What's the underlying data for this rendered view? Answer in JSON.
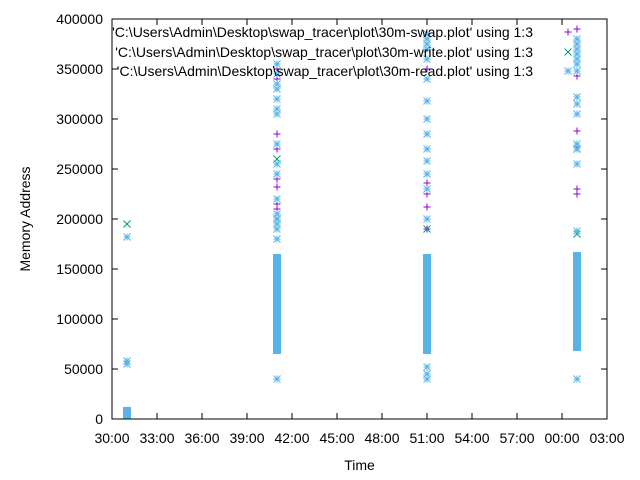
{
  "chart_data": {
    "type": "scatter",
    "xlabel": "Time",
    "ylabel": "Memory Address",
    "xticks": [
      "30:00",
      "33:00",
      "36:00",
      "39:00",
      "42:00",
      "45:00",
      "48:00",
      "51:00",
      "54:00",
      "57:00",
      "00:00",
      "03:00"
    ],
    "xlim": [
      "30:00",
      "03:00"
    ],
    "ylim": [
      0,
      400000
    ],
    "yticks": [
      0,
      50000,
      100000,
      150000,
      200000,
      250000,
      300000,
      350000,
      400000
    ],
    "grid": false,
    "legend_position": "top-right",
    "series": [
      {
        "name": "'C:\\Users\\Admin\\Desktop\\swap_tracer\\plot\\30m-swap.plot' using 1:3",
        "marker": "plus",
        "color": "#9400d3",
        "points": [
          [
            "41:00",
            285000
          ],
          [
            "41:00",
            270000
          ],
          [
            "41:00",
            240000
          ],
          [
            "41:00",
            232000
          ],
          [
            "41:00",
            215000
          ],
          [
            "41:00",
            210000
          ],
          [
            "41:00",
            350000
          ],
          [
            "41:00",
            340000
          ],
          [
            "51:00",
            236000
          ],
          [
            "51:00",
            225000
          ],
          [
            "51:00",
            212000
          ],
          [
            "51:00",
            190000
          ],
          [
            "51:00",
            360000
          ],
          [
            "51:00",
            350000
          ],
          [
            "01:00",
            390000
          ],
          [
            "01:00",
            343000
          ],
          [
            "01:00",
            288000
          ],
          [
            "01:00",
            272000
          ],
          [
            "01:00",
            230000
          ],
          [
            "01:00",
            225000
          ]
        ]
      },
      {
        "name": "'C:\\Users\\Admin\\Desktop\\swap_tracer\\plot\\30m-write.plot' using 1:3",
        "marker": "cross",
        "color": "#009e73",
        "points": [
          [
            "31:00",
            195000
          ],
          [
            "41:00",
            260000
          ],
          [
            "41:00",
            200000
          ],
          [
            "51:00",
            190000
          ],
          [
            "51:00",
            160000
          ],
          [
            "01:00",
            270000
          ],
          [
            "01:00",
            185000
          ]
        ]
      },
      {
        "name": "'C:\\Users\\Admin\\Desktop\\swap_tracer\\plot\\30m-read.plot' using 1:3",
        "marker": "star",
        "color": "#56b4e9",
        "bands": [
          {
            "x": "31:00",
            "y_from": 0,
            "y_to": 12000
          },
          {
            "x": "41:00",
            "y_from": 65000,
            "y_to": 165000
          },
          {
            "x": "51:00",
            "y_from": 65000,
            "y_to": 165000
          },
          {
            "x": "01:00",
            "y_from": 68000,
            "y_to": 167000
          }
        ],
        "points": [
          [
            "31:00",
            182000
          ],
          [
            "31:00",
            58000
          ],
          [
            "31:00",
            55000
          ],
          [
            "41:00",
            40000
          ],
          [
            "41:00",
            180000
          ],
          [
            "41:00",
            190000
          ],
          [
            "41:00",
            195000
          ],
          [
            "41:00",
            200000
          ],
          [
            "41:00",
            205000
          ],
          [
            "41:00",
            220000
          ],
          [
            "41:00",
            245000
          ],
          [
            "41:00",
            255000
          ],
          [
            "41:00",
            275000
          ],
          [
            "41:00",
            305000
          ],
          [
            "41:00",
            310000
          ],
          [
            "41:00",
            320000
          ],
          [
            "41:00",
            330000
          ],
          [
            "41:00",
            335000
          ],
          [
            "41:00",
            345000
          ],
          [
            "41:00",
            355000
          ],
          [
            "51:00",
            40000
          ],
          [
            "51:00",
            45000
          ],
          [
            "51:00",
            52000
          ],
          [
            "51:00",
            200000
          ],
          [
            "51:00",
            230000
          ],
          [
            "51:00",
            245000
          ],
          [
            "51:00",
            258000
          ],
          [
            "51:00",
            270000
          ],
          [
            "51:00",
            285000
          ],
          [
            "51:00",
            300000
          ],
          [
            "51:00",
            318000
          ],
          [
            "51:00",
            340000
          ],
          [
            "51:00",
            360000
          ],
          [
            "51:00",
            370000
          ],
          [
            "51:00",
            375000
          ],
          [
            "51:00",
            380000
          ],
          [
            "51:00",
            385000
          ],
          [
            "01:00",
            40000
          ],
          [
            "01:00",
            188000
          ],
          [
            "01:00",
            255000
          ],
          [
            "01:00",
            270000
          ],
          [
            "01:00",
            275000
          ],
          [
            "01:00",
            305000
          ],
          [
            "01:00",
            315000
          ],
          [
            "01:00",
            322000
          ],
          [
            "01:00",
            348000
          ],
          [
            "01:00",
            355000
          ],
          [
            "01:00",
            360000
          ],
          [
            "01:00",
            365000
          ],
          [
            "01:00",
            370000
          ],
          [
            "01:00",
            375000
          ],
          [
            "01:00",
            380000
          ]
        ]
      }
    ]
  }
}
